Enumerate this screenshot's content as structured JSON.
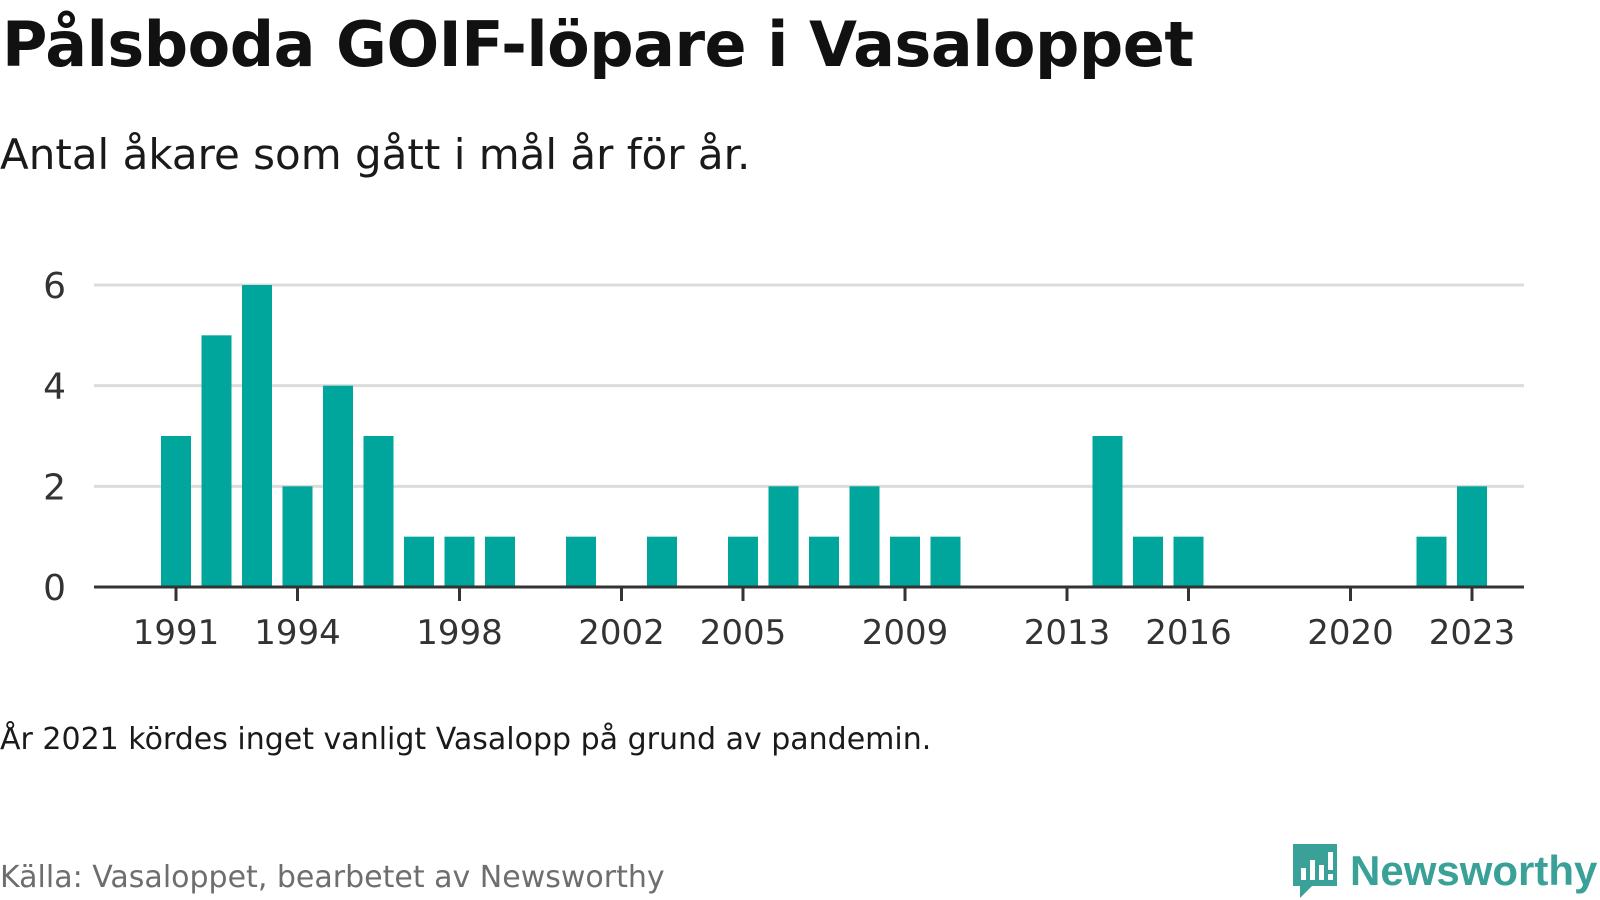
{
  "title": "Pålsboda GOIF-löpare i Vasaloppet",
  "subtitle": "Antal åkare som gått i mål år för år.",
  "note": "År 2021 kördes inget vanligt Vasalopp på grund av pandemin.",
  "source": "Källa: Vasaloppet, bearbetet av Newsworthy",
  "logo": {
    "text": "Newsworthy",
    "icon": "newsworthy-logo-icon",
    "color": "#3aa198"
  },
  "chart_data": {
    "type": "bar",
    "x": [
      1991,
      1992,
      1993,
      1994,
      1995,
      1996,
      1997,
      1998,
      1999,
      2000,
      2001,
      2002,
      2003,
      2004,
      2005,
      2006,
      2007,
      2008,
      2009,
      2010,
      2011,
      2012,
      2013,
      2014,
      2015,
      2016,
      2017,
      2018,
      2019,
      2020,
      2021,
      2022,
      2023
    ],
    "values": [
      3,
      5,
      6,
      2,
      4,
      3,
      1,
      1,
      1,
      0,
      1,
      0,
      1,
      0,
      1,
      2,
      1,
      2,
      1,
      1,
      0,
      0,
      0,
      3,
      1,
      1,
      0,
      0,
      0,
      0,
      0,
      1,
      2
    ],
    "x_ticks": [
      "1991",
      "1994",
      "1998",
      "2002",
      "2005",
      "2009",
      "2013",
      "2016",
      "2020",
      "2023"
    ],
    "y_ticks": [
      "0",
      "2",
      "4",
      "6"
    ],
    "ylim": [
      0,
      6
    ],
    "xlabel": "",
    "ylabel": "",
    "grid": true,
    "bar_color": "#00a59b",
    "grid_color": "#dcdcdc",
    "axis_color": "#333333"
  }
}
